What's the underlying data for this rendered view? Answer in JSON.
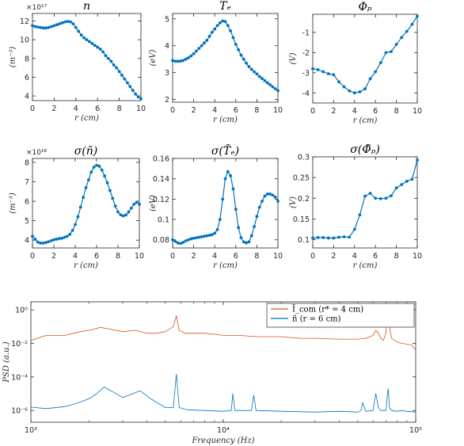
{
  "colors": {
    "blue": "#0072BD",
    "orange": "#D95319",
    "axis": "#262626"
  },
  "chart_data": [
    {
      "id": "n",
      "type": "line",
      "title": "n",
      "xlabel": "r  (cm)",
      "ylabel": "(m⁻³)",
      "multiplier": "×10¹⁷",
      "xlim": [
        0,
        10
      ],
      "ylim": [
        3.5,
        12.8
      ],
      "xticks": [
        0,
        2,
        4,
        6,
        8,
        10
      ],
      "xticklabels": [
        "0",
        "2",
        "4",
        "6",
        "8",
        "10"
      ],
      "yticks": [
        4,
        6,
        8,
        10,
        12
      ],
      "yticklabels": [
        "4",
        "6",
        "8",
        "10",
        "12"
      ],
      "series": [
        {
          "x": [
            0,
            0.25,
            0.5,
            0.75,
            1,
            1.25,
            1.5,
            1.75,
            2,
            2.25,
            2.5,
            2.75,
            3,
            3.25,
            3.5,
            3.75,
            4,
            4.25,
            4.5,
            4.75,
            5,
            5.25,
            5.5,
            5.75,
            6,
            6.25,
            6.5,
            6.75,
            7,
            7.25,
            7.5,
            7.75,
            8,
            8.25,
            8.5,
            8.75,
            9,
            9.25,
            9.5,
            9.75,
            10
          ],
          "y": [
            11.5,
            11.4,
            11.35,
            11.3,
            11.25,
            11.25,
            11.3,
            11.4,
            11.5,
            11.6,
            11.7,
            11.8,
            11.9,
            11.95,
            11.9,
            11.7,
            11.3,
            10.9,
            10.5,
            10.2,
            10.0,
            9.8,
            9.6,
            9.4,
            9.2,
            9.0,
            8.7,
            8.3,
            8.0,
            7.7,
            7.3,
            7.0,
            6.6,
            6.2,
            5.8,
            5.4,
            5.0,
            4.6,
            4.2,
            3.9,
            3.7
          ]
        }
      ]
    },
    {
      "id": "te",
      "type": "line",
      "title": "Tₑ",
      "xlabel": "r  (cm)",
      "ylabel": "(eV)",
      "xlim": [
        0,
        10
      ],
      "ylim": [
        1.9,
        5.2
      ],
      "xticks": [
        0,
        2,
        4,
        6,
        8,
        10
      ],
      "xticklabels": [
        "0",
        "2",
        "4",
        "6",
        "8",
        "10"
      ],
      "yticks": [
        2,
        3,
        4,
        5
      ],
      "yticklabels": [
        "2",
        "3",
        "4",
        "5"
      ],
      "series": [
        {
          "x": [
            0,
            0.25,
            0.5,
            0.75,
            1,
            1.25,
            1.5,
            1.75,
            2,
            2.25,
            2.5,
            2.75,
            3,
            3.25,
            3.5,
            3.75,
            4,
            4.25,
            4.5,
            4.75,
            5,
            5.25,
            5.5,
            5.75,
            6,
            6.25,
            6.5,
            6.75,
            7,
            7.25,
            7.5,
            7.75,
            8,
            8.25,
            8.5,
            8.75,
            9,
            9.25,
            9.5,
            9.75,
            10
          ],
          "y": [
            3.45,
            3.42,
            3.42,
            3.43,
            3.45,
            3.5,
            3.55,
            3.62,
            3.7,
            3.8,
            3.9,
            4.0,
            4.1,
            4.2,
            4.35,
            4.5,
            4.62,
            4.75,
            4.85,
            4.92,
            4.9,
            4.75,
            4.55,
            4.3,
            4.05,
            3.85,
            3.65,
            3.5,
            3.35,
            3.22,
            3.12,
            3.03,
            2.95,
            2.85,
            2.78,
            2.7,
            2.62,
            2.55,
            2.47,
            2.4,
            2.33
          ]
        }
      ]
    },
    {
      "id": "phi",
      "type": "line",
      "title": "Φₚ",
      "xlabel": "r  (cm)",
      "ylabel": "(V)",
      "xlim": [
        0,
        10
      ],
      "ylim": [
        -4.5,
        -0.1
      ],
      "xticks": [
        0,
        2,
        4,
        6,
        8,
        10
      ],
      "xticklabels": [
        "0",
        "2",
        "4",
        "6",
        "8",
        "10"
      ],
      "yticks": [
        -4,
        -3,
        -2,
        -1
      ],
      "yticklabels": [
        "-4",
        "-3",
        "-2",
        "-1"
      ],
      "series": [
        {
          "x": [
            0,
            0.5,
            1,
            1.5,
            2,
            2.5,
            3,
            3.5,
            4,
            4.5,
            5,
            5.5,
            6,
            6.5,
            7,
            7.5,
            8,
            8.5,
            9,
            9.5,
            10
          ],
          "y": [
            -2.8,
            -2.85,
            -2.95,
            -3.05,
            -3.1,
            -3.45,
            -3.7,
            -3.9,
            -4.0,
            -3.95,
            -3.8,
            -3.3,
            -2.95,
            -2.5,
            -2.0,
            -1.95,
            -1.6,
            -1.25,
            -0.95,
            -0.6,
            -0.2
          ]
        }
      ]
    },
    {
      "id": "sn",
      "type": "line",
      "title": "σ(ñ)",
      "xlabel": "r  (cm)",
      "ylabel": "(m⁻³)",
      "multiplier": "×10¹⁶",
      "xlim": [
        0,
        10
      ],
      "ylim": [
        3.6,
        8.2
      ],
      "xticks": [
        0,
        2,
        4,
        6,
        8,
        10
      ],
      "xticklabels": [
        "0",
        "2",
        "4",
        "6",
        "8",
        "10"
      ],
      "yticks": [
        4,
        5,
        6,
        7,
        8
      ],
      "yticklabels": [
        "4",
        "5",
        "6",
        "7",
        "8"
      ],
      "series": [
        {
          "x": [
            0,
            0.25,
            0.5,
            0.75,
            1,
            1.25,
            1.5,
            1.75,
            2,
            2.25,
            2.5,
            2.75,
            3,
            3.25,
            3.5,
            3.75,
            4,
            4.25,
            4.5,
            4.75,
            5,
            5.25,
            5.5,
            5.75,
            6,
            6.25,
            6.5,
            6.75,
            7,
            7.25,
            7.5,
            7.75,
            8,
            8.25,
            8.5,
            8.75,
            9,
            9.25,
            9.5,
            9.75,
            10
          ],
          "y": [
            4.2,
            4.05,
            3.9,
            3.85,
            3.85,
            3.88,
            3.92,
            3.97,
            4.02,
            4.05,
            4.08,
            4.1,
            4.15,
            4.2,
            4.3,
            4.5,
            4.8,
            5.2,
            5.7,
            6.2,
            6.7,
            7.1,
            7.5,
            7.75,
            7.85,
            7.8,
            7.6,
            7.3,
            6.95,
            6.55,
            6.15,
            5.75,
            5.45,
            5.3,
            5.25,
            5.3,
            5.45,
            5.65,
            5.85,
            5.95,
            5.85
          ]
        }
      ]
    },
    {
      "id": "ste",
      "type": "line",
      "title": "σ(T̃ₑ)",
      "xlabel": "r  (cm)",
      "ylabel": "(eV)",
      "xlim": [
        0,
        10
      ],
      "ylim": [
        0.072,
        0.16
      ],
      "xticks": [
        0,
        2,
        4,
        6,
        8,
        10
      ],
      "xticklabels": [
        "0",
        "2",
        "4",
        "6",
        "8",
        "10"
      ],
      "yticks": [
        0.08,
        0.1,
        0.12,
        0.14,
        0.16
      ],
      "yticklabels": [
        "0.08",
        "0.1",
        "0.12",
        "0.14",
        "0.16"
      ],
      "series": [
        {
          "x": [
            0,
            0.25,
            0.5,
            0.75,
            1,
            1.25,
            1.5,
            1.75,
            2,
            2.25,
            2.5,
            2.75,
            3,
            3.25,
            3.5,
            3.75,
            4,
            4.25,
            4.5,
            4.75,
            5,
            5.25,
            5.5,
            5.75,
            6,
            6.25,
            6.5,
            6.75,
            7,
            7.25,
            7.5,
            7.75,
            8,
            8.25,
            8.5,
            8.75,
            9,
            9.25,
            9.5,
            9.75,
            10
          ],
          "y": [
            0.08,
            0.0785,
            0.077,
            0.0765,
            0.0775,
            0.079,
            0.08,
            0.081,
            0.0815,
            0.082,
            0.0825,
            0.083,
            0.0835,
            0.084,
            0.0845,
            0.085,
            0.0865,
            0.09,
            0.1,
            0.12,
            0.14,
            0.147,
            0.143,
            0.13,
            0.11,
            0.092,
            0.082,
            0.078,
            0.077,
            0.078,
            0.084,
            0.093,
            0.103,
            0.112,
            0.118,
            0.123,
            0.125,
            0.125,
            0.124,
            0.122,
            0.118
          ]
        }
      ]
    },
    {
      "id": "sphi",
      "type": "line",
      "title": "σ(Φ̃ₚ)",
      "xlabel": "r  (cm)",
      "ylabel": "(V)",
      "xlim": [
        0,
        10
      ],
      "ylim": [
        0.08,
        0.3
      ],
      "xticks": [
        0,
        2,
        4,
        6,
        8,
        10
      ],
      "xticklabels": [
        "0",
        "2",
        "4",
        "6",
        "8",
        "10"
      ],
      "yticks": [
        0.1,
        0.15,
        0.2,
        0.25,
        0.3
      ],
      "yticklabels": [
        "0.1",
        "0.15",
        "0.2",
        "0.25",
        "0.3"
      ],
      "series": [
        {
          "x": [
            0,
            0.5,
            1,
            1.5,
            2,
            2.5,
            3,
            3.5,
            4,
            4.5,
            5,
            5.5,
            6,
            6.5,
            7,
            7.5,
            8,
            8.5,
            9,
            9.5,
            10
          ],
          "y": [
            0.104,
            0.105,
            0.105,
            0.104,
            0.104,
            0.106,
            0.107,
            0.106,
            0.125,
            0.16,
            0.205,
            0.212,
            0.2,
            0.199,
            0.2,
            0.206,
            0.225,
            0.233,
            0.241,
            0.246,
            0.292
          ]
        }
      ]
    },
    {
      "id": "psd",
      "type": "line",
      "title": "",
      "xlabel": "Frequency  (Hz)",
      "ylabel": "PSD  (a.u.)",
      "xscale": "log",
      "yscale": "log",
      "xlim": [
        1000,
        100000
      ],
      "ylim": [
        2e-07,
        3
      ],
      "xticks": [
        1000,
        10000,
        100000
      ],
      "xticklabels": [
        "10³",
        "10⁴",
        "10⁵"
      ],
      "yticks": [
        1e-06,
        0.0001,
        0.01,
        1
      ],
      "yticklabels": [
        "10⁻⁶",
        "10⁻⁴",
        "10⁻²",
        "10⁰"
      ],
      "legend": {
        "position": "top-right",
        "entries": [
          "Ĩ_com  (r* = 4 cm)",
          "ñ        (r = 6 cm)"
        ]
      },
      "series": [
        {
          "name": "Ĩ_com  (r* = 4 cm)",
          "color": "orange",
          "x": [
            1000,
            1200,
            1500,
            1800,
            2000,
            2300,
            2600,
            3000,
            3500,
            4000,
            4500,
            5000,
            5500,
            5700,
            5900,
            6300,
            7000,
            8000,
            9000,
            10000,
            12000,
            15000,
            20000,
            25000,
            30000,
            40000,
            50000,
            55000,
            60000,
            62000,
            64000,
            66000,
            68000,
            70000,
            71000,
            72000,
            73000,
            75000,
            80000,
            85000,
            90000,
            95000,
            100000
          ],
          "y": [
            0.015,
            0.03,
            0.03,
            0.05,
            0.06,
            0.09,
            0.07,
            0.05,
            0.06,
            0.04,
            0.04,
            0.05,
            0.1,
            0.45,
            0.06,
            0.04,
            0.04,
            0.04,
            0.035,
            0.03,
            0.03,
            0.025,
            0.025,
            0.02,
            0.02,
            0.018,
            0.018,
            0.02,
            0.03,
            0.06,
            0.04,
            0.02,
            0.015,
            0.04,
            0.45,
            1.2,
            0.1,
            0.02,
            0.012,
            0.01,
            0.009,
            0.008,
            0.004
          ]
        },
        {
          "name": "ñ        (r = 6 cm)",
          "color": "blue",
          "x": [
            1000,
            1200,
            1500,
            1700,
            2000,
            2200,
            2400,
            2700,
            3000,
            3300,
            3700,
            4200,
            5000,
            5500,
            5700,
            5900,
            6500,
            8000,
            10000,
            11000,
            11200,
            11500,
            14000,
            14400,
            14800,
            20000,
            30000,
            40000,
            50000,
            52000,
            53000,
            55000,
            60000,
            62000,
            64000,
            66000,
            70000,
            71000,
            72000,
            73000,
            75000,
            80000,
            85000,
            90000,
            100000
          ],
          "y": [
            1.6e-06,
            1.3e-06,
            1.7e-06,
            2.5e-06,
            5e-06,
            1e-05,
            2.5e-05,
            1.2e-05,
            6e-06,
            9e-06,
            1.5e-05,
            5e-06,
            1.5e-06,
            1.5e-06,
            0.00015,
            1.5e-06,
            1.1e-06,
            1e-06,
            9e-07,
            1e-06,
            1e-05,
            1e-06,
            1e-06,
            8e-06,
            1e-06,
            9e-07,
            8e-07,
            9e-07,
            8e-07,
            1e-06,
            3e-06,
            9e-07,
            1e-06,
            1e-05,
            1.5e-06,
            1e-06,
            1e-06,
            6e-06,
            2e-05,
            1.5e-06,
            1e-06,
            9e-07,
            1e-06,
            9e-07,
            8e-07
          ]
        }
      ]
    }
  ]
}
